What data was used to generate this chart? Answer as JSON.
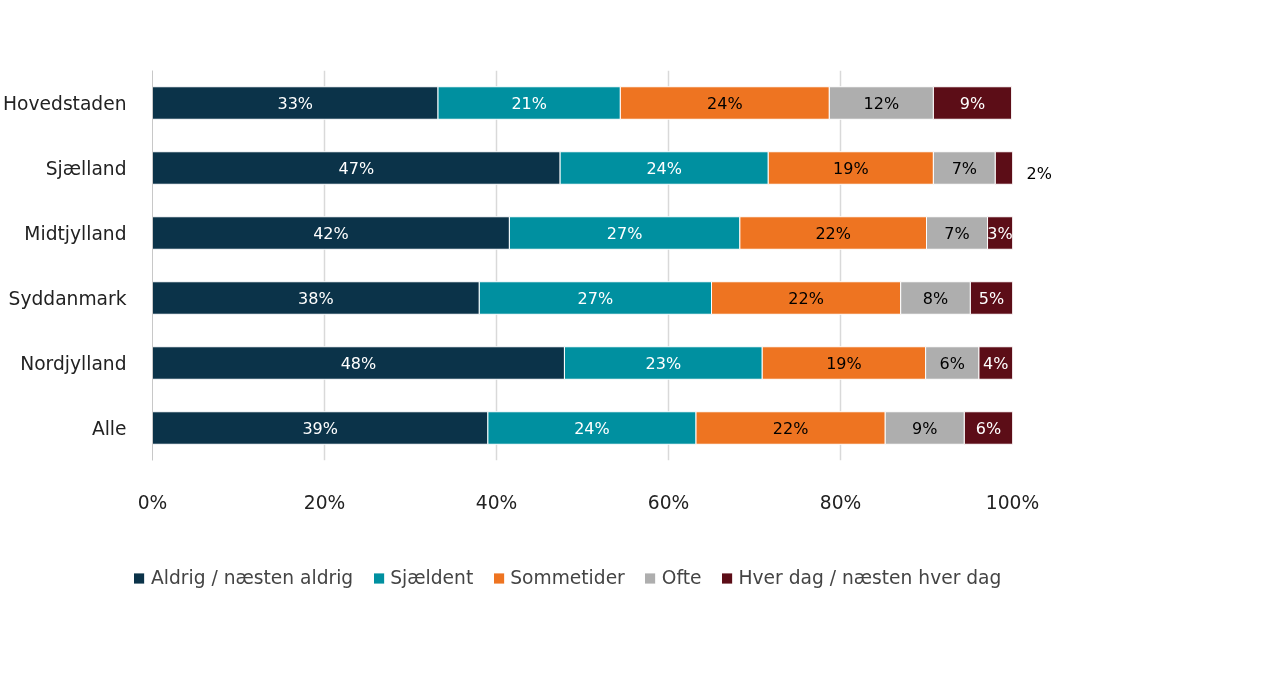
{
  "chart_data": {
    "type": "bar",
    "orientation": "horizontal",
    "stacked": true,
    "categories": [
      "Hovedstaden",
      "Sjælland",
      "Midtjylland",
      "Syddanmark",
      "Nordjylland",
      "Alle"
    ],
    "series": [
      {
        "name": "Aldrig / næsten aldrig",
        "color": "#0b3349",
        "values": [
          33.2,
          47.4,
          41.5,
          38.0,
          47.9,
          39.0
        ],
        "value_labels": [
          "33%",
          "47%",
          "42%",
          "38%",
          "48%",
          "39%"
        ]
      },
      {
        "name": "Sjældent",
        "color": "#0090a0",
        "values": [
          21.2,
          24.2,
          26.8,
          27.0,
          23.0,
          24.2
        ],
        "value_labels": [
          "21%",
          "24%",
          "27%",
          "27%",
          "23%",
          "24%"
        ]
      },
      {
        "name": "Sommetider",
        "color": "#ee7421",
        "values": [
          24.3,
          19.2,
          21.7,
          22.0,
          19.0,
          22.0
        ],
        "value_labels": [
          "24%",
          "19%",
          "22%",
          "22%",
          "19%",
          "22%"
        ]
      },
      {
        "name": "Ofte",
        "color": "#aeaeae",
        "values": [
          12.1,
          7.2,
          7.1,
          8.1,
          6.2,
          9.2
        ],
        "value_labels": [
          "12%",
          "7%",
          "7%",
          "8%",
          "6%",
          "9%"
        ]
      },
      {
        "name": "Hver dag / næsten hver dag",
        "color": "#5c0d17",
        "values": [
          9.1,
          2.0,
          2.9,
          4.9,
          3.9,
          5.6
        ],
        "value_labels": [
          "9%",
          "2%",
          "3%",
          "5%",
          "4%",
          "6%"
        ]
      }
    ],
    "xlim": [
      0,
      100
    ],
    "xticks": [
      {
        "value": 0,
        "label": "0%"
      },
      {
        "value": 20,
        "label": "20%"
      },
      {
        "value": 40,
        "label": "40%"
      },
      {
        "value": 60,
        "label": "60%"
      },
      {
        "value": 80,
        "label": "80%"
      },
      {
        "value": 100,
        "label": "100%"
      }
    ],
    "grid": "x",
    "legend": "bottom"
  }
}
